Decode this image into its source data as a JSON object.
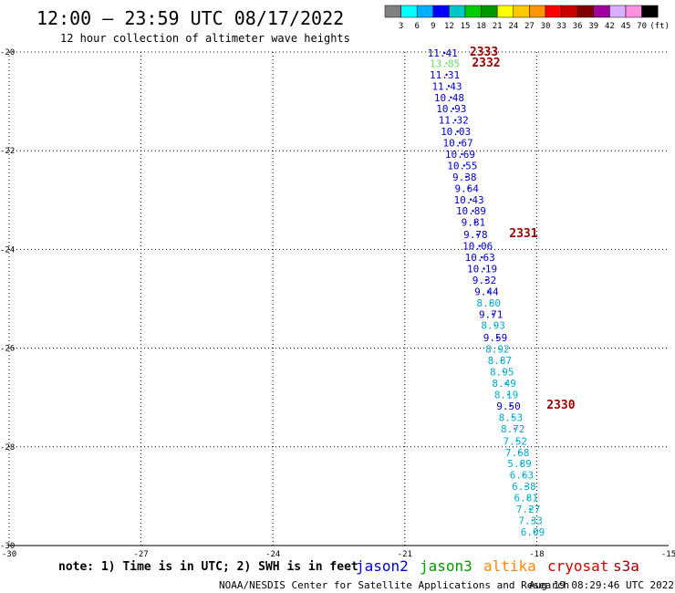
{
  "title": "12:00 – 23:59 UTC 08/17/2022",
  "subtitle": "12 hour collection of altimeter wave heights",
  "note": "note: 1) Time is in UTC; 2) SWH is in feet",
  "credit": "NOAA/NESDIS Center for Satellite Applications and Research",
  "timestamp": "Aug 19 08:29:46 UTC 2022",
  "legend_scale": {
    "unit": "(ft)",
    "labels": [
      "3",
      "6",
      "9",
      "12",
      "15",
      "18",
      "21",
      "24",
      "27",
      "30",
      "33",
      "36",
      "39",
      "42",
      "45",
      "70"
    ],
    "colors": [
      "#808080",
      "#00ffff",
      "#00b0ff",
      "#0000ff",
      "#00c8c8",
      "#00cc00",
      "#009600",
      "#ffff00",
      "#ffc800",
      "#ff9600",
      "#ff0000",
      "#c80000",
      "#800000",
      "#a000a0",
      "#d8b0ff",
      "#ff90e0",
      "#000000"
    ]
  },
  "satellites": [
    {
      "name": "jason2",
      "color": "#0000cc"
    },
    {
      "name": "jason3",
      "color": "#009900"
    },
    {
      "name": "altika",
      "color": "#ff8800"
    },
    {
      "name": "cryosat",
      "color": "#cc0000"
    },
    {
      "name": "s3a",
      "color": "#990000"
    }
  ],
  "chart_data": {
    "type": "scatter",
    "xlim": [
      -30,
      -15
    ],
    "ylim": [
      -30,
      -20
    ],
    "x_ticks": [
      -30,
      -27,
      -24,
      -21,
      -18,
      -15
    ],
    "y_ticks": [
      -20,
      -22,
      -24,
      -26,
      -28,
      -30
    ],
    "grid": true,
    "points": [
      {
        "lon": -20.1,
        "lat": -20.02,
        "label": "11.41",
        "color": "#0000cc"
      },
      {
        "lon": -20.05,
        "lat": -20.23,
        "label": "13.85",
        "color": "#66dd66"
      },
      {
        "lon": -20.05,
        "lat": -20.46,
        "label": "11.31",
        "color": "#0000cc"
      },
      {
        "lon": -20.0,
        "lat": -20.69,
        "label": "11.43",
        "color": "#0000cc"
      },
      {
        "lon": -19.95,
        "lat": -20.92,
        "label": "10.48",
        "color": "#0000cc"
      },
      {
        "lon": -19.9,
        "lat": -21.15,
        "label": "10.93",
        "color": "#0000cc"
      },
      {
        "lon": -19.85,
        "lat": -21.38,
        "label": "11.32",
        "color": "#0000cc"
      },
      {
        "lon": -19.8,
        "lat": -21.61,
        "label": "10.03",
        "color": "#0000cc"
      },
      {
        "lon": -19.75,
        "lat": -21.84,
        "label": "10.67",
        "color": "#0000cc"
      },
      {
        "lon": -19.7,
        "lat": -22.07,
        "label": "10.69",
        "color": "#0000cc"
      },
      {
        "lon": -19.65,
        "lat": -22.3,
        "label": "10.55",
        "color": "#0000cc"
      },
      {
        "lon": -19.6,
        "lat": -22.53,
        "label": "9.38",
        "color": "#0000cc"
      },
      {
        "lon": -19.55,
        "lat": -22.76,
        "label": "9.64",
        "color": "#0000cc"
      },
      {
        "lon": -19.5,
        "lat": -22.99,
        "label": "10.43",
        "color": "#0000cc"
      },
      {
        "lon": -19.45,
        "lat": -23.22,
        "label": "10.89",
        "color": "#0000cc"
      },
      {
        "lon": -19.4,
        "lat": -23.45,
        "label": "9.81",
        "color": "#0000cc"
      },
      {
        "lon": -19.35,
        "lat": -23.7,
        "label": "9.78",
        "color": "#0000cc"
      },
      {
        "lon": -19.3,
        "lat": -23.93,
        "label": "10.06",
        "color": "#0000cc"
      },
      {
        "lon": -19.25,
        "lat": -24.16,
        "label": "10.63",
        "color": "#0000cc"
      },
      {
        "lon": -19.2,
        "lat": -24.39,
        "label": "10.19",
        "color": "#0000cc"
      },
      {
        "lon": -19.15,
        "lat": -24.62,
        "label": "9.32",
        "color": "#0000cc"
      },
      {
        "lon": -19.1,
        "lat": -24.85,
        "label": "9.44",
        "color": "#0000cc"
      },
      {
        "lon": -19.05,
        "lat": -25.08,
        "label": "8.80",
        "color": "#00aacc"
      },
      {
        "lon": -19.0,
        "lat": -25.31,
        "label": "9.71",
        "color": "#0000cc"
      },
      {
        "lon": -18.95,
        "lat": -25.54,
        "label": "8.93",
        "color": "#00aacc"
      },
      {
        "lon": -18.9,
        "lat": -25.79,
        "label": "9.59",
        "color": "#0000cc"
      },
      {
        "lon": -18.85,
        "lat": -26.02,
        "label": "8.92",
        "color": "#00aacc"
      },
      {
        "lon": -18.8,
        "lat": -26.25,
        "label": "8.87",
        "color": "#00aacc"
      },
      {
        "lon": -18.75,
        "lat": -26.48,
        "label": "8.95",
        "color": "#00aacc"
      },
      {
        "lon": -18.7,
        "lat": -26.71,
        "label": "8.49",
        "color": "#00aacc"
      },
      {
        "lon": -18.65,
        "lat": -26.94,
        "label": "8.19",
        "color": "#00aacc"
      },
      {
        "lon": -18.6,
        "lat": -27.17,
        "label": "9.50",
        "color": "#0000cc"
      },
      {
        "lon": -18.55,
        "lat": -27.4,
        "label": "8.53",
        "color": "#00aacc"
      },
      {
        "lon": -18.5,
        "lat": -27.63,
        "label": "8.72",
        "color": "#00aacc"
      },
      {
        "lon": -18.45,
        "lat": -27.88,
        "label": "7.52",
        "color": "#00aacc"
      },
      {
        "lon": -18.4,
        "lat": -28.11,
        "label": "7.68",
        "color": "#00aacc"
      },
      {
        "lon": -18.35,
        "lat": -28.34,
        "label": "5.89",
        "color": "#00aacc"
      },
      {
        "lon": -18.3,
        "lat": -28.57,
        "label": "6.63",
        "color": "#00aacc"
      },
      {
        "lon": -18.25,
        "lat": -28.8,
        "label": "6.38",
        "color": "#00aacc"
      },
      {
        "lon": -18.2,
        "lat": -29.03,
        "label": "6.81",
        "color": "#00aacc"
      },
      {
        "lon": -18.15,
        "lat": -29.26,
        "label": "7.27",
        "color": "#00aacc"
      },
      {
        "lon": -18.1,
        "lat": -29.49,
        "label": "7.33",
        "color": "#00aacc"
      },
      {
        "lon": -18.05,
        "lat": -29.72,
        "label": "6.09",
        "color": "#00aacc"
      }
    ],
    "time_labels": [
      {
        "lon": -19.2,
        "lat": -20.0,
        "label": "2333",
        "color": "#990000"
      },
      {
        "lon": -19.15,
        "lat": -20.22,
        "label": "2332",
        "color": "#990000"
      },
      {
        "lon": -18.3,
        "lat": -23.68,
        "label": "2331",
        "color": "#990000"
      },
      {
        "lon": -17.45,
        "lat": -27.15,
        "label": "2330",
        "color": "#990000"
      }
    ]
  }
}
